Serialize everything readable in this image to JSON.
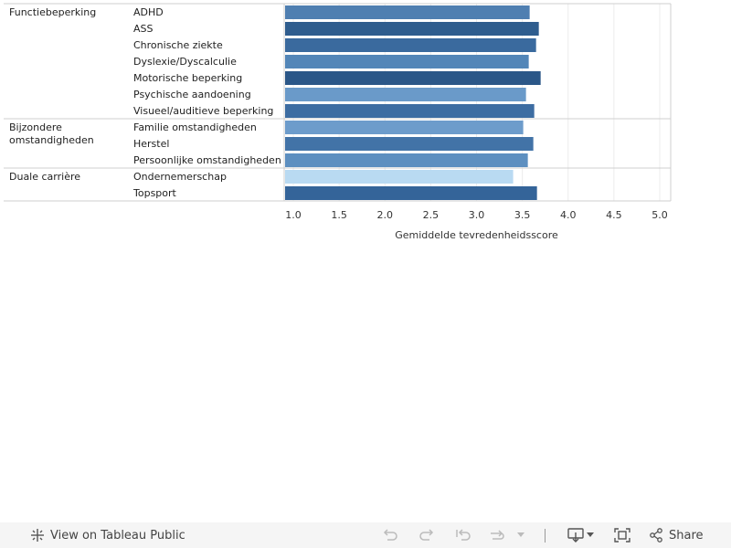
{
  "chart_data": {
    "type": "bar",
    "orientation": "horizontal",
    "xlabel": "Gemiddelde tevredenheidsscore",
    "xlim": [
      1.0,
      5.0
    ],
    "xticks": [
      "1.0",
      "1.5",
      "2.0",
      "2.5",
      "3.0",
      "3.5",
      "4.0",
      "4.5",
      "5.0"
    ],
    "grid": true,
    "groups": [
      {
        "name": "Functiebeperking",
        "items": [
          {
            "label": "ADHD",
            "value": 3.58,
            "color": "#4f7fb1"
          },
          {
            "label": "ASS",
            "value": 3.68,
            "color": "#2f5d8e"
          },
          {
            "label": "Chronische ziekte",
            "value": 3.65,
            "color": "#3a6a9e"
          },
          {
            "label": "Dyslexie/Dyscalculie",
            "value": 3.57,
            "color": "#5386b8"
          },
          {
            "label": "Motorische beperking",
            "value": 3.7,
            "color": "#2b5788"
          },
          {
            "label": "Psychische aandoening",
            "value": 3.54,
            "color": "#6a9ac9"
          },
          {
            "label": "Visueel/auditieve beperking",
            "value": 3.63,
            "color": "#3d6da2"
          }
        ]
      },
      {
        "name": "Bijzondere omstandigheden",
        "items": [
          {
            "label": "Familie omstandigheden",
            "value": 3.51,
            "color": "#6d9ccb"
          },
          {
            "label": "Herstel",
            "value": 3.62,
            "color": "#4273a7"
          },
          {
            "label": "Persoonlijke omstandigheden",
            "value": 3.56,
            "color": "#5d8fc0"
          }
        ]
      },
      {
        "name": "Duale carrière",
        "items": [
          {
            "label": "Ondernemerschap",
            "value": 3.4,
            "color": "#b9daf2"
          },
          {
            "label": "Topsport",
            "value": 3.66,
            "color": "#346499"
          }
        ]
      }
    ]
  },
  "toolbar": {
    "view_label": "View on Tableau Public",
    "share_label": "Share"
  }
}
